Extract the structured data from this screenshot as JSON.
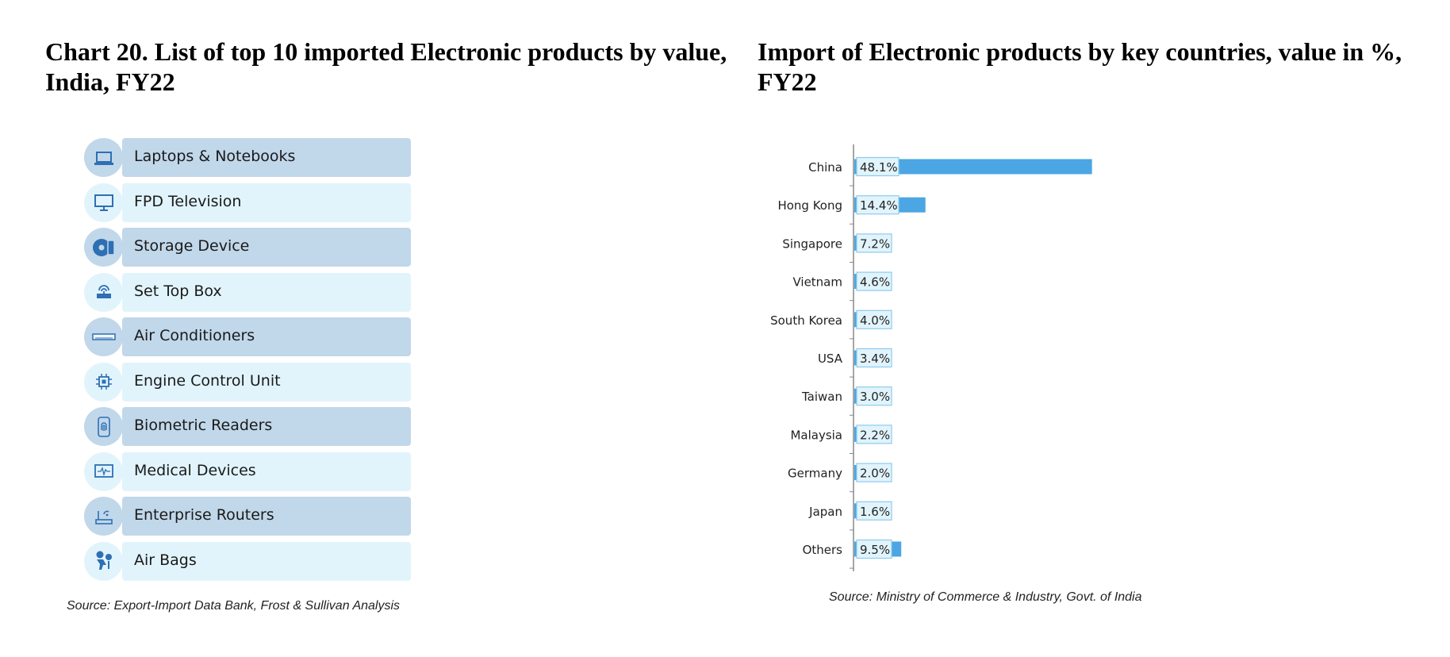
{
  "left": {
    "title": "Chart 20. List of top 10 imported Electronic products by value, India, FY22",
    "items": [
      {
        "label": "Laptops & Notebooks",
        "icon": "laptop-icon"
      },
      {
        "label": "FPD Television",
        "icon": "monitor-icon"
      },
      {
        "label": "Storage Device",
        "icon": "disc-icon"
      },
      {
        "label": "Set Top Box",
        "icon": "set-top-box-icon"
      },
      {
        "label": "Air Conditioners",
        "icon": "air-conditioner-icon"
      },
      {
        "label": "Engine Control Unit",
        "icon": "chip-icon"
      },
      {
        "label": "Biometric Readers",
        "icon": "fingerprint-icon"
      },
      {
        "label": "Medical Devices",
        "icon": "heart-monitor-icon"
      },
      {
        "label": "Enterprise Routers",
        "icon": "router-icon"
      },
      {
        "label": "Air Bags",
        "icon": "airbag-icon"
      }
    ],
    "source": "Source: Export-Import Data Bank, Frost & Sullivan Analysis"
  },
  "right": {
    "title": "Import of Electronic products by key countries, value in %, FY22",
    "source": "Source: Ministry of Commerce & Industry, Govt. of India"
  },
  "chart_data": {
    "type": "bar",
    "orientation": "horizontal",
    "title": "Import of Electronic products by key countries, value in %, FY22",
    "categories": [
      "China",
      "Hong Kong",
      "Singapore",
      "Vietnam",
      "South Korea",
      "USA",
      "Taiwan",
      "Malaysia",
      "Germany",
      "Japan",
      "Others"
    ],
    "values": [
      48.1,
      14.4,
      7.2,
      4.6,
      4.0,
      3.4,
      3.0,
      2.2,
      2.0,
      1.6,
      9.5
    ],
    "value_labels": [
      "48.1%",
      "14.4%",
      "7.2%",
      "4.6%",
      "4.0%",
      "3.4%",
      "3.0%",
      "2.2%",
      "2.0%",
      "1.6%",
      "9.5%"
    ],
    "bar_color": "#4ba6e3",
    "label_box_color": "#e1f4fc",
    "grid": false,
    "legend": "none"
  },
  "colors": {
    "dark_row": "#c1d7ea",
    "light_row": "#e1f4fc",
    "icon": "#3a7fc4"
  }
}
